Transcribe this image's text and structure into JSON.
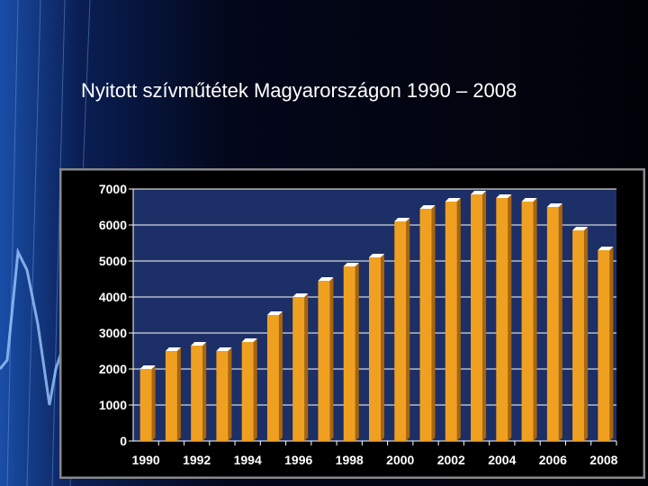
{
  "slide": {
    "title": "Nyitott szívműtétek Magyarországon 1990 – 2008"
  },
  "colors": {
    "background": "#03050f",
    "plot_area": "#1c2f66",
    "bar_front": "#f0a020",
    "bar_side": "#a8650e",
    "bar_top": "#ffffff",
    "axis_text": "#ffffff",
    "gridline": "#ffffff",
    "frame_border": "#888888"
  },
  "chart_data": {
    "type": "bar",
    "title": "",
    "xlabel": "",
    "ylabel": "",
    "ylim": [
      0,
      7000
    ],
    "yticks": [
      "0",
      "1000",
      "2000",
      "3000",
      "4000",
      "5000",
      "6000",
      "7000"
    ],
    "categories": [
      "1990",
      "1991",
      "1992",
      "1993",
      "1994",
      "1995",
      "1996",
      "1997",
      "1998",
      "1999",
      "2000",
      "2001",
      "2002",
      "2003",
      "2004",
      "2005",
      "2006",
      "2007",
      "2008"
    ],
    "xtick_labels": [
      "1990",
      "1992",
      "1994",
      "1996",
      "1998",
      "2000",
      "2002",
      "2004",
      "2006",
      "2008"
    ],
    "values": [
      2000,
      2500,
      2650,
      2500,
      2750,
      3500,
      4000,
      4450,
      4850,
      5100,
      6100,
      6450,
      6650,
      6850,
      6750,
      6650,
      6500,
      5850,
      5300
    ],
    "grid": true,
    "legend": "none"
  }
}
